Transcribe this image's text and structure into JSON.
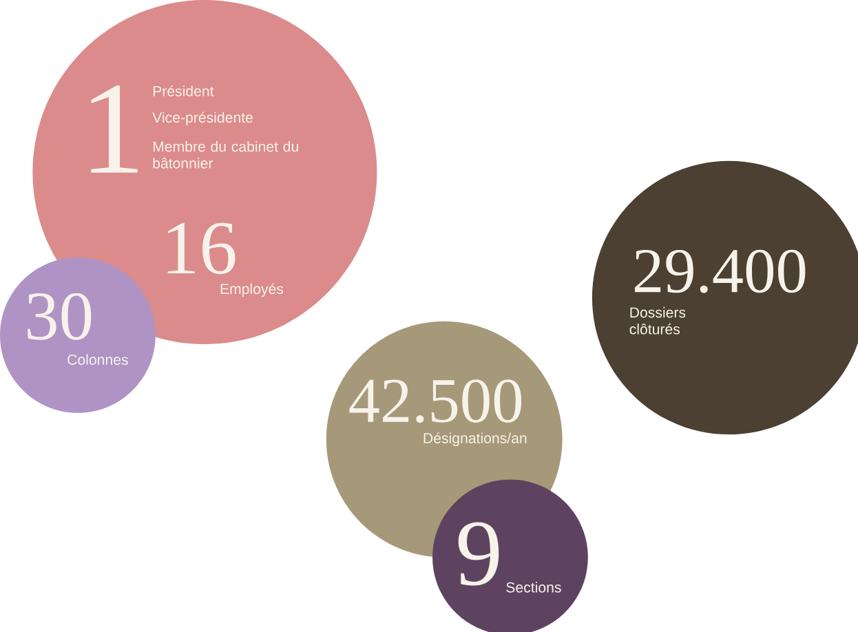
{
  "chart_data": {
    "type": "other",
    "categories": [
      "Président",
      "Employés",
      "Colonnes",
      "Désignations/an",
      "Dossiers clôturés",
      "Sections"
    ],
    "values": [
      1,
      16,
      30,
      42500,
      29400,
      9
    ],
    "value_labels": [
      "1",
      "16",
      "30",
      "42.500",
      "29.400",
      "9"
    ],
    "colors": [
      "#db8b8b",
      "#db8b8b",
      "#b093c5",
      "#a69979",
      "#4b4031",
      "#5e4360"
    ],
    "annotations": [
      "Vice-présidente",
      "Membre du cabinet du bâtonnier"
    ]
  }
}
